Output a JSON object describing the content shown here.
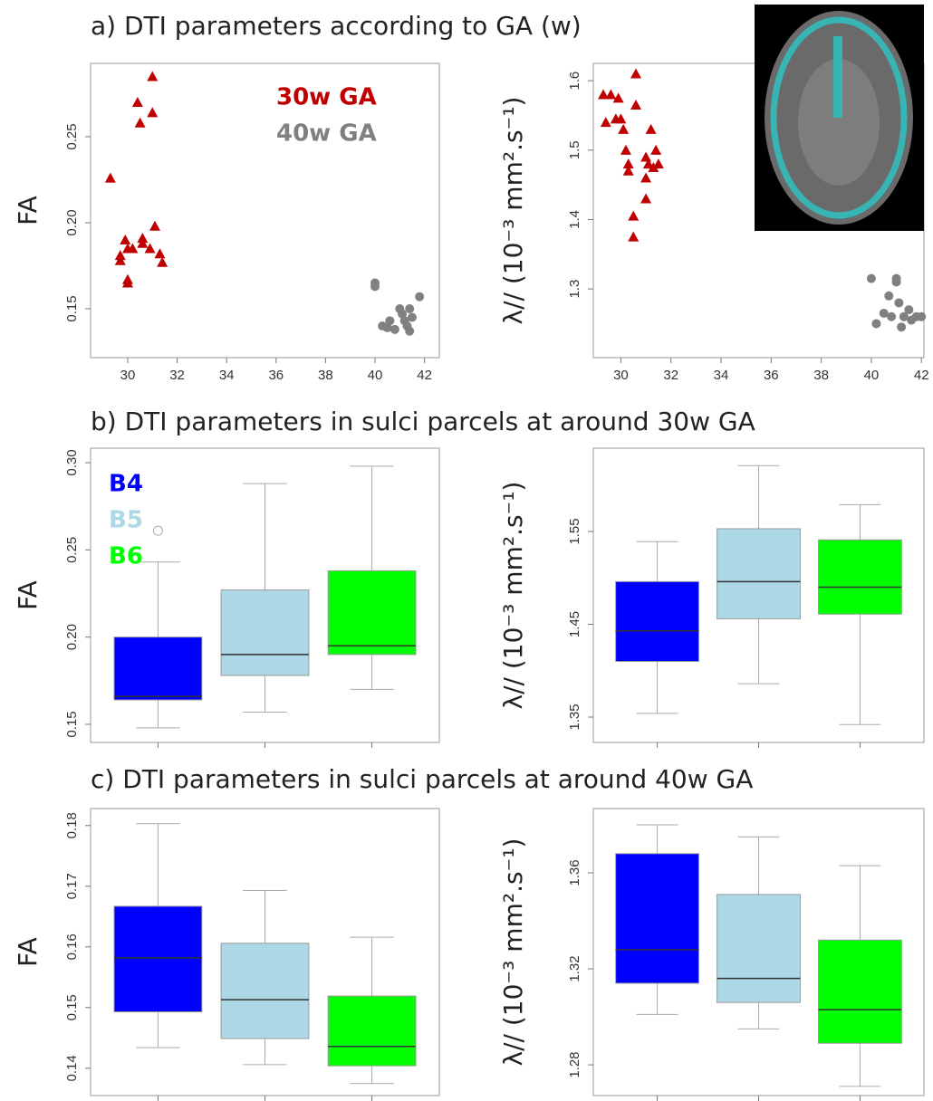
{
  "panel_titles": [
    "a) DTI parameters according to GA (w)",
    "b) DTI parameters in sulci parcels at around 30w GA",
    "c) DTI parameters in sulci parcels at around 40w GA"
  ],
  "chart_data": [
    {
      "type": "scatter",
      "y_label": "FA",
      "xlim": [
        28.5,
        42.6
      ],
      "ylim": [
        0.1216,
        0.2926
      ],
      "xticks": [
        30,
        32,
        34,
        36,
        38,
        40,
        42
      ],
      "yticks": [
        0.15,
        {
          "value": 0.2,
          "label": "0.20"
        },
        0.25
      ],
      "legend": "top-right",
      "series": [
        {
          "name": "30w GA",
          "color": "#c00000",
          "marker": "triangle",
          "x": [
            29.3,
            29.7,
            29.7,
            29.9,
            30,
            30,
            30,
            30.2,
            30.4,
            30.5,
            30.6,
            30.6,
            30.9,
            31,
            31,
            31.1,
            31.3,
            31.4
          ],
          "y": [
            0.226,
            0.178,
            0.181,
            0.19,
            0.185,
            0.167,
            0.165,
            0.185,
            0.27,
            0.258,
            0.191,
            0.188,
            0.185,
            0.285,
            0.264,
            0.198,
            0.182,
            0.177
          ]
        },
        {
          "name": "40w GA",
          "color": "#808080",
          "marker": "circle",
          "x": [
            40,
            40,
            40.3,
            40.5,
            40.6,
            40.8,
            41,
            41.1,
            41.2,
            41.3,
            41.4,
            41.5,
            41.8,
            41.4
          ],
          "y": [
            0.165,
            0.163,
            0.14,
            0.139,
            0.143,
            0.138,
            0.15,
            0.147,
            0.143,
            0.14,
            0.137,
            0.145,
            0.157,
            0.15
          ]
        }
      ]
    },
    {
      "type": "scatter",
      "y_label": "λ// (10⁻³ mm².s⁻¹)",
      "xlim": [
        28.9,
        42.1
      ],
      "ylim": [
        1.201,
        1.625
      ],
      "xticks": [
        30,
        32,
        34,
        36,
        38,
        40,
        42
      ],
      "yticks": [
        1.3,
        1.4,
        1.5,
        1.6
      ],
      "series": [
        {
          "color": "#c00000",
          "marker": "triangle",
          "x": [
            29.3,
            29.4,
            29.6,
            29.8,
            29.9,
            30,
            30.1,
            30.2,
            30.3,
            30.3,
            30.5,
            30.5,
            30.6,
            30.6,
            31,
            31,
            31,
            31.1,
            31.2,
            31.3,
            31.4,
            31.5
          ],
          "y": [
            1.58,
            1.54,
            1.58,
            1.545,
            1.575,
            1.545,
            1.53,
            1.5,
            1.48,
            1.47,
            1.405,
            1.375,
            1.61,
            1.565,
            1.49,
            1.46,
            1.43,
            1.48,
            1.53,
            1.475,
            1.5,
            1.48
          ]
        },
        {
          "color": "#808080",
          "marker": "circle",
          "x": [
            40,
            40.2,
            40.5,
            40.7,
            40.8,
            41,
            41,
            41.1,
            41.2,
            41.3,
            41.5,
            41.6,
            41.8,
            42
          ],
          "y": [
            1.315,
            1.25,
            1.265,
            1.29,
            1.26,
            1.315,
            1.31,
            1.28,
            1.245,
            1.26,
            1.27,
            1.255,
            1.26,
            1.26
          ]
        }
      ]
    },
    {
      "type": "box",
      "y_label": "FA",
      "ylim": [
        0.1396,
        0.3083
      ],
      "yticks": [
        0.15,
        {
          "value": 0.2,
          "label": "0.20"
        },
        0.25,
        {
          "value": 0.3,
          "label": "0.30"
        }
      ],
      "legend": "top-left",
      "boxes": [
        {
          "name": "B4",
          "color": "#0000ff",
          "whisker_low": 0.148,
          "q1": 0.164,
          "median": 0.166,
          "q3": 0.2,
          "whisker_high": 0.243,
          "outliers": [
            0.261
          ]
        },
        {
          "name": "B5",
          "color": "#add8e6",
          "whisker_low": 0.157,
          "q1": 0.178,
          "median": 0.19,
          "q3": 0.227,
          "whisker_high": 0.288,
          "outliers": []
        },
        {
          "name": "B6",
          "color": "#00ff00",
          "whisker_low": 0.17,
          "q1": 0.19,
          "median": 0.195,
          "q3": 0.238,
          "whisker_high": 0.298,
          "outliers": []
        }
      ]
    },
    {
      "type": "box",
      "y_label": "λ// (10⁻³ mm².s⁻¹)",
      "ylim": [
        1.3227,
        1.6398
      ],
      "yticks": [
        1.35,
        1.45,
        1.55
      ],
      "boxes": [
        {
          "color": "#0000ff",
          "whisker_low": 1.354,
          "q1": 1.41,
          "median": 1.443,
          "q3": 1.496,
          "whisker_high": 1.539,
          "outliers": []
        },
        {
          "color": "#add8e6",
          "whisker_low": 1.386,
          "q1": 1.456,
          "median": 1.496,
          "q3": 1.553,
          "whisker_high": 1.621,
          "outliers": []
        },
        {
          "color": "#00ff00",
          "whisker_low": 1.342,
          "q1": 1.461,
          "median": 1.49,
          "q3": 1.541,
          "whisker_high": 1.579,
          "outliers": []
        }
      ]
    },
    {
      "type": "box",
      "y_label": "FA",
      "ylim": [
        0.1355,
        0.1828
      ],
      "yticks": [
        0.14,
        0.15,
        0.16,
        0.17,
        0.18
      ],
      "boxes": [
        {
          "color": "#0000ff",
          "whisker_low": 0.1434,
          "q1": 0.1493,
          "median": 0.1582,
          "q3": 0.1667,
          "whisker_high": 0.1803,
          "outliers": []
        },
        {
          "color": "#add8e6",
          "whisker_low": 0.1406,
          "q1": 0.1449,
          "median": 0.1513,
          "q3": 0.1606,
          "whisker_high": 0.1693,
          "outliers": []
        },
        {
          "color": "#00ff00",
          "whisker_low": 0.1375,
          "q1": 0.1404,
          "median": 0.1436,
          "q3": 0.1519,
          "whisker_high": 0.1616,
          "outliers": []
        }
      ]
    },
    {
      "type": "box",
      "y_label": "λ// (10⁻³ mm².s⁻¹)",
      "ylim": [
        1.2672,
        1.3868
      ],
      "yticks": [
        1.28,
        1.32,
        1.36
      ],
      "boxes": [
        {
          "color": "#0000ff",
          "whisker_low": 1.301,
          "q1": 1.314,
          "median": 1.328,
          "q3": 1.368,
          "whisker_high": 1.38,
          "outliers": []
        },
        {
          "color": "#add8e6",
          "whisker_low": 1.295,
          "q1": 1.306,
          "median": 1.316,
          "q3": 1.351,
          "whisker_high": 1.375,
          "outliers": []
        },
        {
          "color": "#00ff00",
          "whisker_low": 1.271,
          "q1": 1.289,
          "median": 1.303,
          "q3": 1.332,
          "whisker_high": 1.363,
          "outliers": []
        }
      ]
    }
  ]
}
